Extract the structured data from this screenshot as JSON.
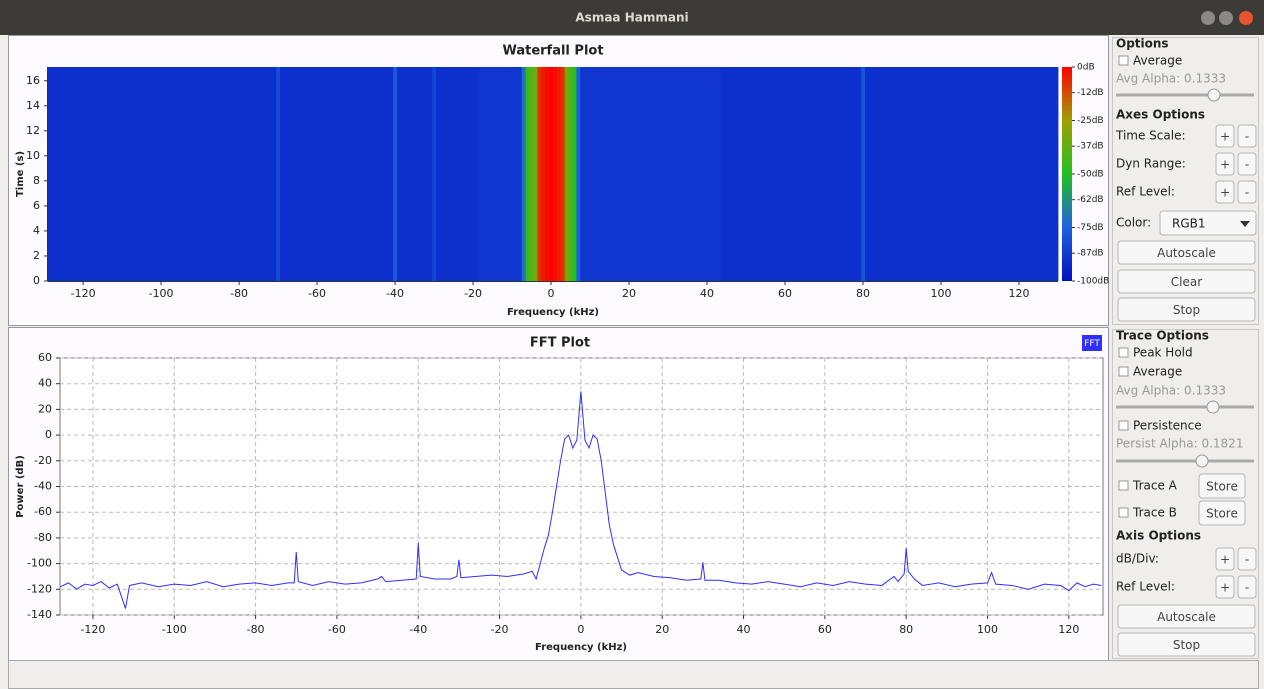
{
  "window": {
    "title": "Asmaa Hammani"
  },
  "chart_data": [
    {
      "type": "waterfall",
      "title": "Waterfall Plot",
      "x_label": "Frequency (kHz)",
      "y_label": "Time (s)",
      "xlim": [
        -129,
        130
      ],
      "xticks": [
        -120,
        -100,
        -80,
        -60,
        -40,
        -20,
        0,
        20,
        40,
        60,
        80,
        100,
        120
      ],
      "ylim": [
        0,
        17.1
      ],
      "yticks": [
        0,
        2,
        4,
        6,
        8,
        10,
        12,
        14,
        16
      ],
      "clim": [
        -100,
        0
      ],
      "cticks": [
        {
          "value": 0,
          "label": "0dB"
        },
        {
          "value": -12,
          "label": "-12dB"
        },
        {
          "value": -25,
          "label": "-25dB"
        },
        {
          "value": -37,
          "label": "-37dB"
        },
        {
          "value": -50,
          "label": "-50dB"
        },
        {
          "value": -62,
          "label": "-62dB"
        },
        {
          "value": -75,
          "label": "-75dB"
        },
        {
          "value": -87,
          "label": "-87dB"
        },
        {
          "value": -100,
          "label": "-100dB"
        }
      ],
      "x": [
        -129,
        -71,
        -70,
        -69,
        -41,
        -40,
        -39,
        -31,
        -30,
        -29,
        -8,
        -7,
        -6,
        -5,
        -4,
        -3,
        -2,
        -1,
        0,
        1,
        2,
        3,
        4,
        5,
        6,
        7,
        8,
        79,
        80,
        81,
        130
      ],
      "values": [
        -90,
        -90,
        -82,
        -90,
        -90,
        -78,
        -90,
        -90,
        -84,
        -90,
        -88,
        -70,
        -45,
        -40,
        -35,
        -8,
        -4,
        -2,
        0,
        -2,
        -4,
        -8,
        -35,
        -40,
        -50,
        -75,
        -88,
        -90,
        -80,
        -90,
        -90
      ]
    },
    {
      "type": "line",
      "title": "FFT Plot",
      "x_label": "Frequency (kHz)",
      "y_label": "Power (dB)",
      "grid": true,
      "xlim": [
        -128.1,
        128.4
      ],
      "xticks": [
        -120,
        -100,
        -80,
        -60,
        -40,
        -20,
        0,
        20,
        40,
        60,
        80,
        100,
        120
      ],
      "ylim": [
        -140,
        60
      ],
      "yticks": [
        -140,
        -120,
        -100,
        -80,
        -60,
        -40,
        -20,
        0,
        20,
        40,
        60
      ],
      "x": [
        -128,
        -126,
        -124,
        -122,
        -120,
        -118,
        -116,
        -114,
        -112,
        -111,
        -108,
        -104,
        -100,
        -96,
        -92,
        -88,
        -84,
        -80,
        -76,
        -72,
        -70.5,
        -70,
        -69.5,
        -66,
        -62,
        -58,
        -54,
        -50,
        -49,
        -48,
        -44,
        -40.5,
        -40,
        -39.5,
        -36,
        -32,
        -30.5,
        -30,
        -29.5,
        -26,
        -22,
        -18,
        -14,
        -12,
        -11,
        -10,
        -9,
        -8,
        -7,
        -6,
        -5,
        -4,
        -3,
        -2,
        -1,
        0,
        1,
        2,
        3,
        4,
        5,
        6,
        7,
        8,
        9,
        10,
        12,
        14,
        18,
        22,
        26,
        29.5,
        30,
        30.5,
        34,
        38,
        42,
        46,
        50,
        54,
        58,
        62,
        66,
        70,
        74,
        77,
        78,
        79.5,
        80,
        80.5,
        82,
        84,
        88,
        92,
        96,
        100,
        101,
        102,
        106,
        110,
        114,
        118,
        120,
        122,
        124,
        126,
        128
      ],
      "series": [
        {
          "name": "FFT",
          "color": "#2f2fff",
          "values": [
            -118,
            -115,
            -120,
            -116,
            -117,
            -114,
            -119,
            -116,
            -135,
            -117,
            -115,
            -118,
            -116,
            -117,
            -114,
            -118,
            -116,
            -115,
            -117,
            -115,
            -115,
            -91,
            -114,
            -117,
            -114,
            -116,
            -115,
            -112,
            -110,
            -114,
            -113,
            -112,
            -84,
            -110,
            -112,
            -112,
            -110,
            -97,
            -111,
            -110,
            -109,
            -110,
            -108,
            -106,
            -112,
            -100,
            -88,
            -78,
            -60,
            -40,
            -20,
            -3,
            0,
            -10,
            -4,
            34,
            -4,
            -10,
            0,
            -3,
            -20,
            -45,
            -70,
            -85,
            -95,
            -105,
            -109,
            -107,
            -110,
            -111,
            -113,
            -112,
            -99,
            -113,
            -113,
            -115,
            -116,
            -114,
            -116,
            -118,
            -115,
            -117,
            -114,
            -116,
            -117,
            -110,
            -114,
            -108,
            -88,
            -106,
            -112,
            -117,
            -115,
            -118,
            -116,
            -115,
            -107,
            -116,
            -117,
            -120,
            -116,
            -117,
            -121,
            -115,
            -118,
            -116,
            -117
          ]
        }
      ]
    }
  ],
  "controls": {
    "plus": "+",
    "minus": "-",
    "options": {
      "title": "Options",
      "average": "Average",
      "avg_alpha": "Avg Alpha: 0.1333"
    },
    "axes_options": {
      "title": "Axes Options",
      "time_scale": "Time Scale:",
      "dyn_range": "Dyn Range:",
      "ref_level": "Ref Level:",
      "color": "Color:",
      "color_value": "RGB1",
      "autoscale": "Autoscale",
      "clear": "Clear",
      "stop": "Stop"
    },
    "trace_options": {
      "title": "Trace Options",
      "peak_hold": "Peak Hold",
      "average": "Average",
      "avg_alpha": "Avg Alpha: 0.1333",
      "persistence": "Persistence",
      "persist_alpha": "Persist Alpha: 0.1821",
      "trace_a": "Trace A",
      "trace_b": "Trace B",
      "store": "Store"
    },
    "axis_options": {
      "title": "Axis Options",
      "db_div": "dB/Div:",
      "ref_level": "Ref Level:",
      "autoscale": "Autoscale",
      "stop": "Stop"
    }
  }
}
